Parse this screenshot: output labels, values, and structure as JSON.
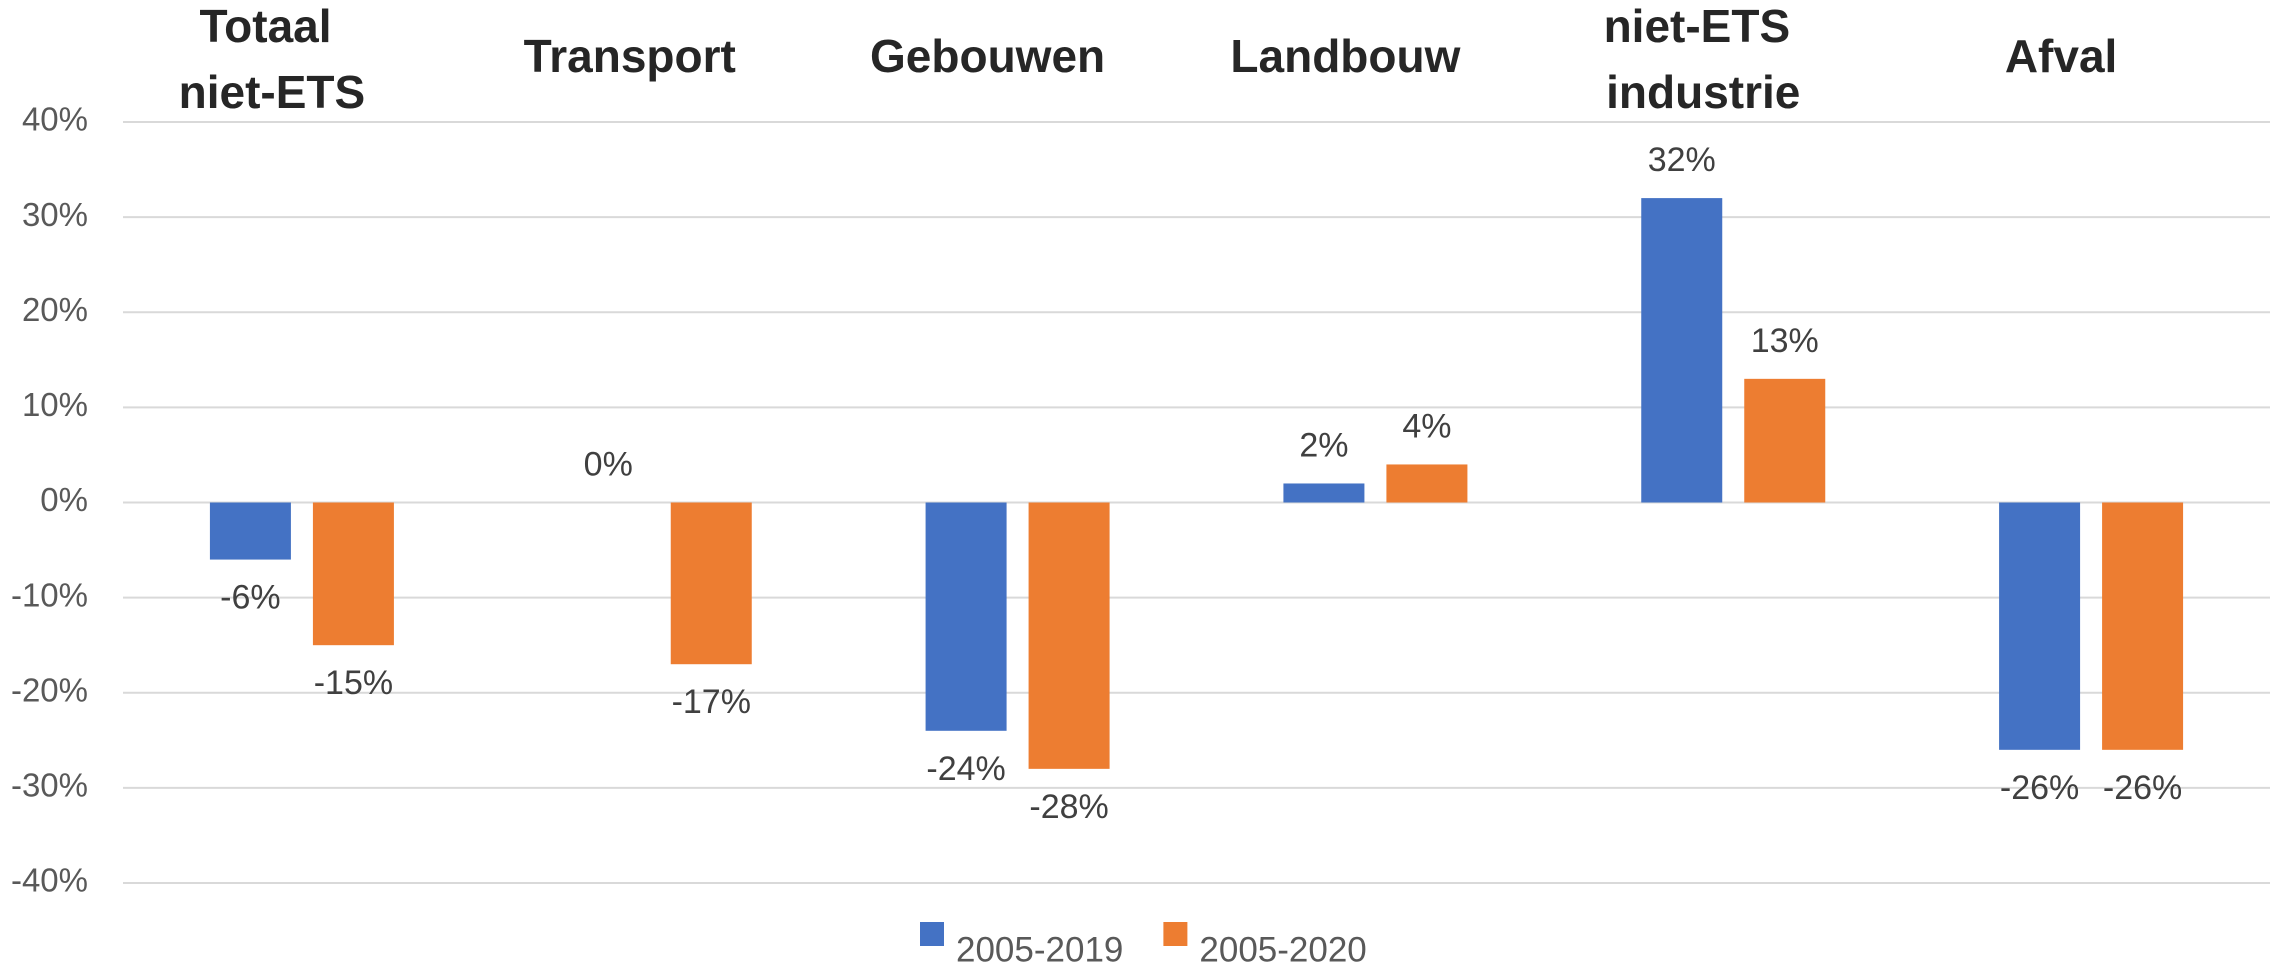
{
  "chart_data": {
    "type": "bar",
    "categories": [
      "Totaal niet-ETS",
      "Transport",
      "Gebouwen",
      "Landbouw",
      "niet-ETS industrie",
      "Afval"
    ],
    "series": [
      {
        "name": "2005-2019",
        "color": "#4472c4",
        "values": [
          -6,
          0,
          -24,
          2,
          32,
          -26
        ],
        "value_labels": [
          "-6%",
          "0%",
          "-24%",
          "2%",
          "32%",
          "-26%"
        ]
      },
      {
        "name": "2005-2020",
        "color": "#ed7d31",
        "values": [
          -15,
          -17,
          -28,
          4,
          13,
          -26
        ],
        "value_labels": [
          "-15%",
          "-17%",
          "-28%",
          "4%",
          "13%",
          "-26%"
        ]
      }
    ],
    "ylim": [
      -40,
      40
    ],
    "yticks": [
      {
        "value": -40,
        "label": "-40%"
      },
      {
        "value": -30,
        "label": "-30%"
      },
      {
        "value": -20,
        "label": "-20%"
      },
      {
        "value": -10,
        "label": "-10%"
      },
      {
        "value": 0,
        "label": "0%"
      },
      {
        "value": 10,
        "label": "10%"
      },
      {
        "value": 20,
        "label": "20%"
      },
      {
        "value": 30,
        "label": "30%"
      },
      {
        "value": 40,
        "label": "40%"
      }
    ],
    "grid": true,
    "legend": "bottom"
  }
}
